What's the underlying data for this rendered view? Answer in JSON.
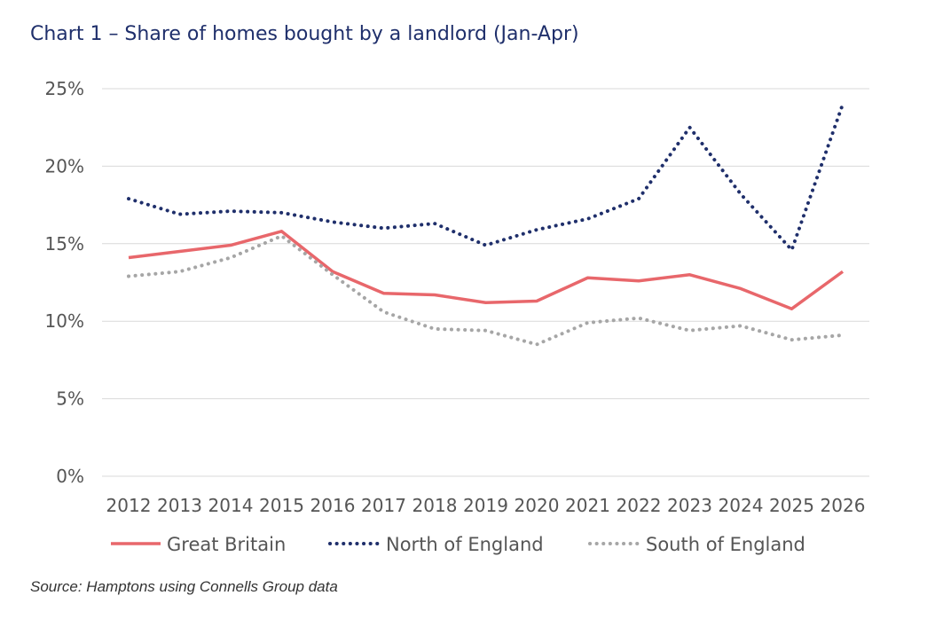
{
  "title": "Chart 1 – Share of homes bought by a landlord (Jan-Apr)",
  "source": "Source: Hamptons using Connells Group data",
  "chart_data": {
    "type": "line",
    "title": "Chart 1 – Share of homes bought by a landlord (Jan-Apr)",
    "xlabel": "",
    "ylabel": "",
    "x": [
      "2012",
      "2013",
      "2014",
      "2015",
      "2016",
      "2017",
      "2018",
      "2019",
      "2020",
      "2021",
      "2022",
      "2023",
      "2024",
      "2025",
      "2026"
    ],
    "ylim": [
      0,
      25
    ],
    "yticks": [
      0,
      5,
      10,
      15,
      20,
      25
    ],
    "ytick_labels": [
      "0%",
      "5%",
      "10%",
      "15%",
      "20%",
      "25%"
    ],
    "grid": true,
    "legend_position": "bottom",
    "series": [
      {
        "name": "Great Britain",
        "style": "solid",
        "color": "#e8676b",
        "values": [
          14.1,
          14.5,
          14.9,
          15.8,
          13.2,
          11.8,
          11.7,
          11.2,
          11.3,
          12.8,
          12.6,
          13.0,
          12.1,
          10.8,
          13.2
        ]
      },
      {
        "name": "North of England",
        "style": "dotted",
        "color": "#1f2f6b",
        "values": [
          17.9,
          16.9,
          17.1,
          17.0,
          16.4,
          16.0,
          16.3,
          14.9,
          15.9,
          16.6,
          17.9,
          22.5,
          18.2,
          14.6,
          24.0
        ]
      },
      {
        "name": "South of England",
        "style": "dotted",
        "color": "#a6a6a6",
        "values": [
          12.9,
          13.2,
          14.1,
          15.5,
          13.0,
          10.6,
          9.5,
          9.4,
          8.5,
          9.9,
          10.2,
          9.4,
          9.7,
          8.8,
          9.1
        ]
      }
    ]
  }
}
